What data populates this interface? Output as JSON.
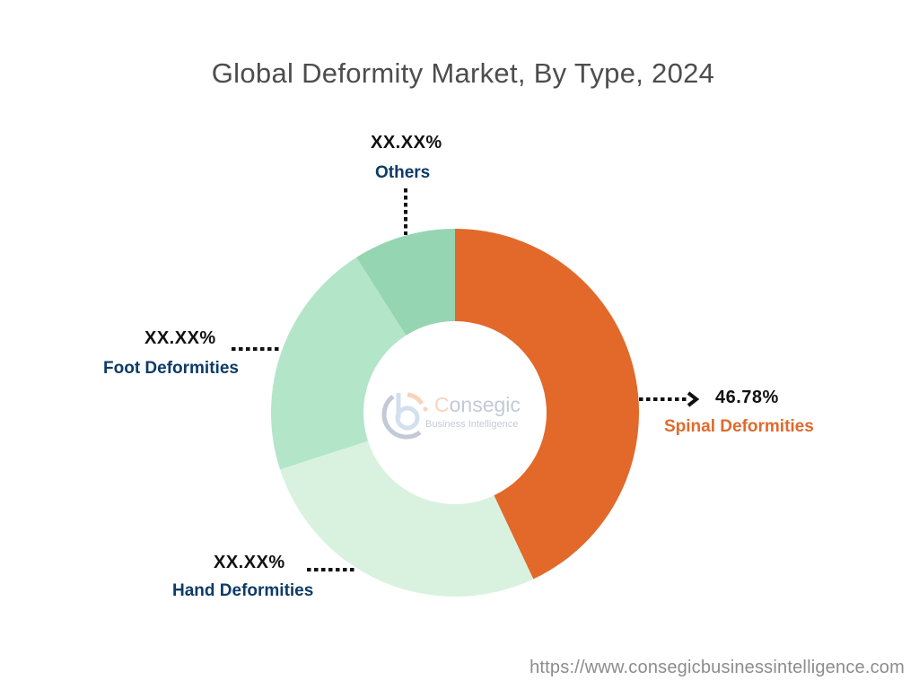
{
  "title": "Global Deformity Market, By Type, 2024",
  "footer_url": "https://www.consegicbusinessintelligence.com",
  "logo": {
    "name_first_letter": "C",
    "name_rest": "onsegic",
    "tagline": "Business Intelligence"
  },
  "labels": {
    "spinal": {
      "pct": "46.78%",
      "name": "Spinal Deformities"
    },
    "hand": {
      "pct": "XX.XX%",
      "name": "Hand Deformities"
    },
    "foot": {
      "pct": "XX.XX%",
      "name": "Foot Deformities"
    },
    "others": {
      "pct": "XX.XX%",
      "name": "Others"
    }
  },
  "colors": {
    "spinal": "#e2692a",
    "hand": "#d9f2df",
    "foot": "#b3e5c8",
    "others": "#95d5b2"
  },
  "chart_data": {
    "type": "pie",
    "subtype": "donut",
    "title": "Global Deformity Market, By Type, 2024",
    "categories": [
      "Spinal Deformities",
      "Hand Deformities",
      "Foot Deformities",
      "Others"
    ],
    "values": [
      46.78,
      27.2,
      20.8,
      5.22
    ],
    "value_labels": [
      "46.78%",
      "XX.XX%",
      "XX.XX%",
      "XX.XX%"
    ],
    "approx_visual_share_pct": [
      43,
      27,
      21,
      9
    ],
    "start_angle_deg": 0,
    "direction": "clockwise",
    "legend": "none (callout labels)"
  }
}
